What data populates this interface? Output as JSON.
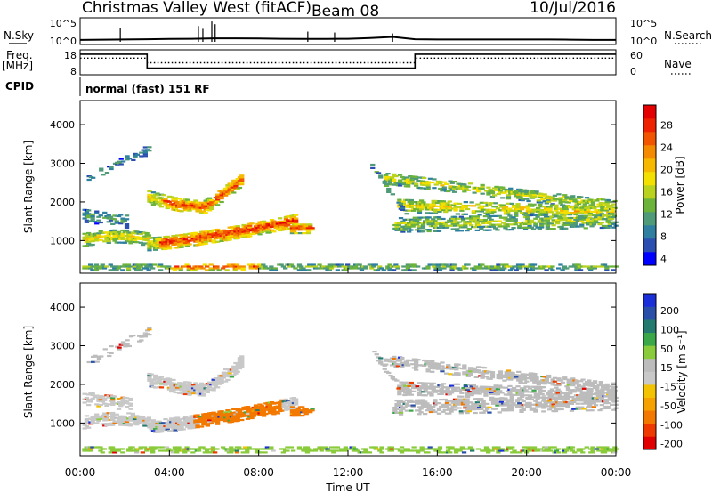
{
  "header": {
    "station": "Christmas Valley West (fitACF)",
    "beam": "Beam 08",
    "date": "10/Jul/2016"
  },
  "left_labels": {
    "nsky": "N.Sky",
    "freq_top": "Freq.",
    "freq_unit": "[MHz]",
    "cpid": "CPID"
  },
  "right_labels": {
    "nsearch": "N.Search",
    "nave": "Nave"
  },
  "cpid_text": "normal (fast) 151 RF",
  "colors": {
    "power_scale": [
      "#0000ff",
      "#2b4fb0",
      "#2e7fa0",
      "#4f9a78",
      "#6cb33c",
      "#b8d21e",
      "#f4e000",
      "#f7b900",
      "#f48a00",
      "#f15500",
      "#ee2200",
      "#e40000"
    ],
    "velocity_scale": [
      "#e00000",
      "#ee3a00",
      "#f27800",
      "#f5a200",
      "#f3c200",
      "#c8c8c8",
      "#bcbcbc",
      "#8acb3c",
      "#3aa848",
      "#247a6e",
      "#2a4fa8",
      "#1a2fd8"
    ]
  },
  "chart_data": [
    {
      "id": "nsky",
      "type": "line",
      "ylabel_left": "N.Sky",
      "ylabel_right": "N.Search",
      "y_ticks_left": [
        "10^5",
        "10^0"
      ],
      "y_ticks_right": [
        "10^5",
        "10^0"
      ],
      "x": [
        0,
        1,
        2,
        3,
        4,
        5,
        6,
        7,
        8,
        9,
        10,
        11,
        12,
        13,
        14,
        15,
        16,
        17,
        18,
        19,
        20,
        21,
        22,
        23,
        24
      ],
      "series": [
        {
          "values": [
            0.6,
            0.65,
            0.7,
            0.75,
            0.8,
            0.85,
            0.95,
            0.95,
            0.9,
            0.85,
            0.8,
            0.8,
            0.85,
            1.0,
            1.25,
            0.75,
            0.7,
            0.7,
            0.7,
            0.7,
            0.7,
            0.7,
            0.65,
            0.6,
            0.6
          ]
        }
      ],
      "ylim": [
        0,
        5
      ]
    },
    {
      "id": "freq",
      "type": "line",
      "ylabel_left": "Freq. [MHz]",
      "ylabel_right": "Nave",
      "y_ticks_left": [
        "18",
        "8"
      ],
      "y_ticks_right": [
        "60",
        "0"
      ],
      "series": [
        {
          "style": "solid",
          "x": [
            0,
            3.0,
            3.0,
            15.0,
            15.0,
            24
          ],
          "values": [
            16.5,
            16.5,
            10.5,
            10.5,
            16.5,
            16.5
          ]
        },
        {
          "style": "dotted",
          "x": [
            0,
            3.0,
            3.0,
            15.0,
            15.0,
            24
          ],
          "values": [
            14.8,
            14.8,
            12.8,
            12.8,
            14.8,
            14.8
          ]
        }
      ],
      "ylim": [
        8,
        18
      ]
    },
    {
      "id": "power",
      "type": "heatmap",
      "ylabel": "Slant Range [km]",
      "y_ticks": [
        "4000",
        "3000",
        "2000",
        "1000"
      ],
      "y_tick_values": [
        4000,
        3000,
        2000,
        1000
      ],
      "ylim": [
        180,
        4600
      ],
      "xlim": [
        0,
        24
      ],
      "colorbar_label": "Power [dB]",
      "colorbar_ticks": [
        "28",
        "24",
        "20",
        "16",
        "12",
        "8",
        "4"
      ],
      "colorbar_range": [
        0,
        32
      ]
    },
    {
      "id": "velocity",
      "type": "heatmap",
      "ylabel": "Slant Range [km]",
      "y_ticks": [
        "4000",
        "3000",
        "2000",
        "1000"
      ],
      "y_tick_values": [
        4000,
        3000,
        2000,
        1000
      ],
      "ylim": [
        180,
        4600
      ],
      "xlim": [
        0,
        24
      ],
      "xlabel": "Time UT",
      "x_ticks": [
        "00:00",
        "04:00",
        "08:00",
        "12:00",
        "16:00",
        "20:00",
        "00:00"
      ],
      "colorbar_label": "Velocity [m s⁻¹]",
      "colorbar_ticks": [
        "200",
        "100",
        "50",
        "15",
        "-15",
        "-50",
        "-100",
        "-200"
      ]
    }
  ]
}
